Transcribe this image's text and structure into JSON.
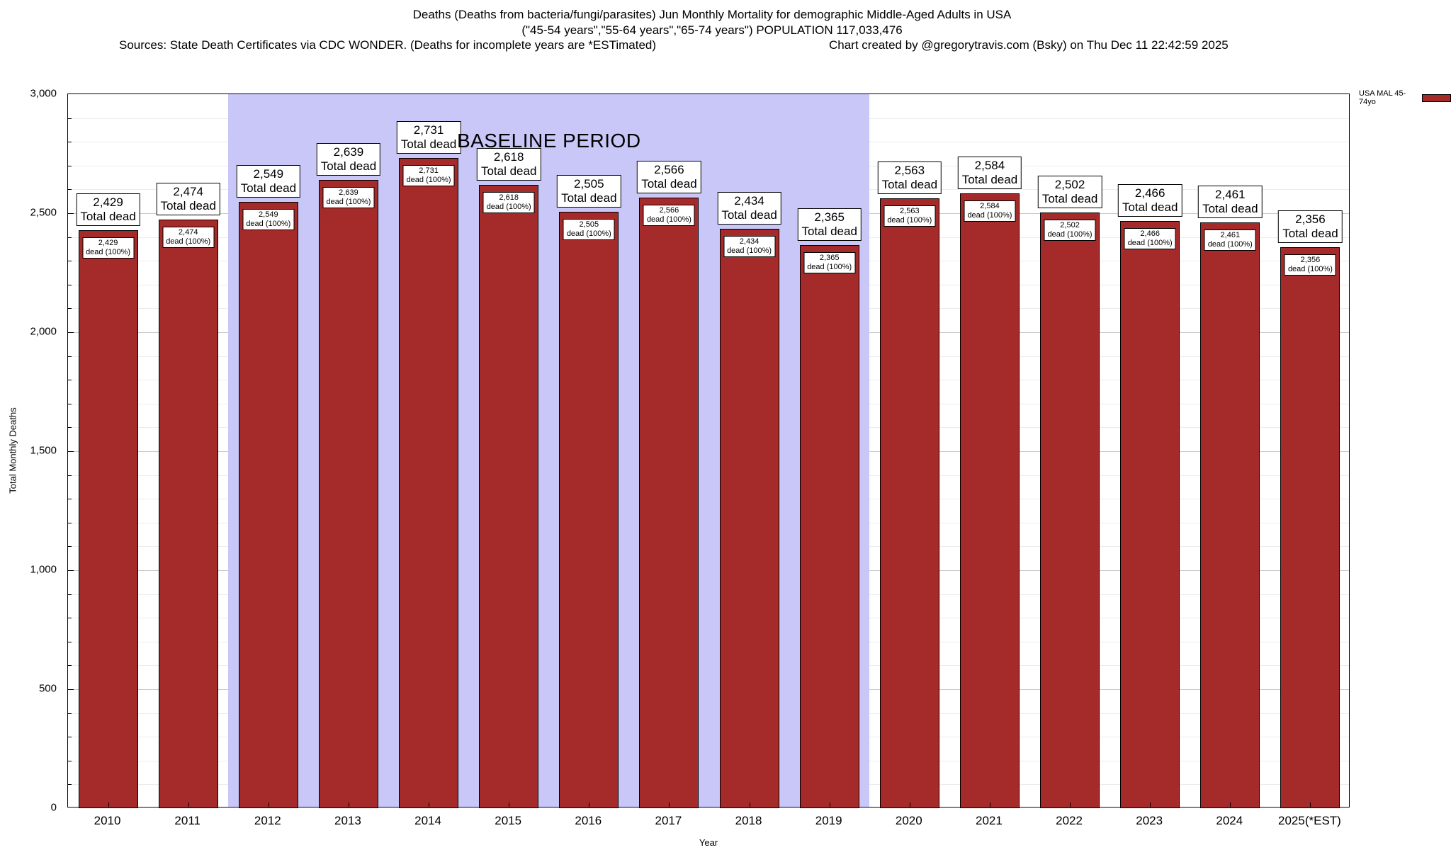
{
  "header": {
    "title_line1": "Deaths (Deaths from bacteria/fungi/parasites) Jun Monthly Mortality for demographic Middle-Aged Adults in USA",
    "title_line2": "(\"45-54 years\",\"55-64 years\",\"65-74 years\") POPULATION 117,033,476",
    "sources": "Sources: State Death Certificates via CDC WONDER. (Deaths for incomplete years are *ESTimated)",
    "credit": "Chart created by @gregorytravis.com (Bsky) on Thu Dec 11 22:42:59 2025"
  },
  "chart_data": {
    "type": "bar",
    "title": "Deaths (Deaths from bacteria/fungi/parasites) Jun Monthly Mortality for demographic Middle-Aged Adults in USA",
    "subtitle": "(\"45-54 years\",\"55-64 years\",\"65-74 years\") POPULATION 117,033,476",
    "xlabel": "Year",
    "ylabel": "Total Monthly Deaths",
    "ylim": [
      0,
      3000
    ],
    "yticks": [
      0,
      500,
      1000,
      1500,
      2000,
      2500,
      3000
    ],
    "ytick_labels": [
      "0",
      "500",
      "1,000",
      "1,500",
      "2,000",
      "2,500",
      "3,000"
    ],
    "grid": true,
    "legend_position": "top-right-outside",
    "categories": [
      "2010",
      "2011",
      "2012",
      "2013",
      "2014",
      "2015",
      "2016",
      "2017",
      "2018",
      "2019",
      "2020",
      "2021",
      "2022",
      "2023",
      "2024",
      "2025(*EST)"
    ],
    "values": [
      2429,
      2474,
      2549,
      2639,
      2731,
      2618,
      2505,
      2566,
      2434,
      2365,
      2563,
      2584,
      2502,
      2466,
      2461,
      2356
    ],
    "bar_label_line2": "Total dead",
    "inner_label_line2": "dead (100%)",
    "baseline": {
      "label": "BASELINE PERIOD",
      "start_category": "2012",
      "end_category": "2019"
    },
    "legend": {
      "label": "USA MAL 45-74yo"
    },
    "colors": {
      "bar": "#a52a2a",
      "bar_border": "#000000",
      "baseline_region": "#c9c6f8",
      "grid_major": "#c9c9c9",
      "grid_minor": "#ececec"
    }
  }
}
